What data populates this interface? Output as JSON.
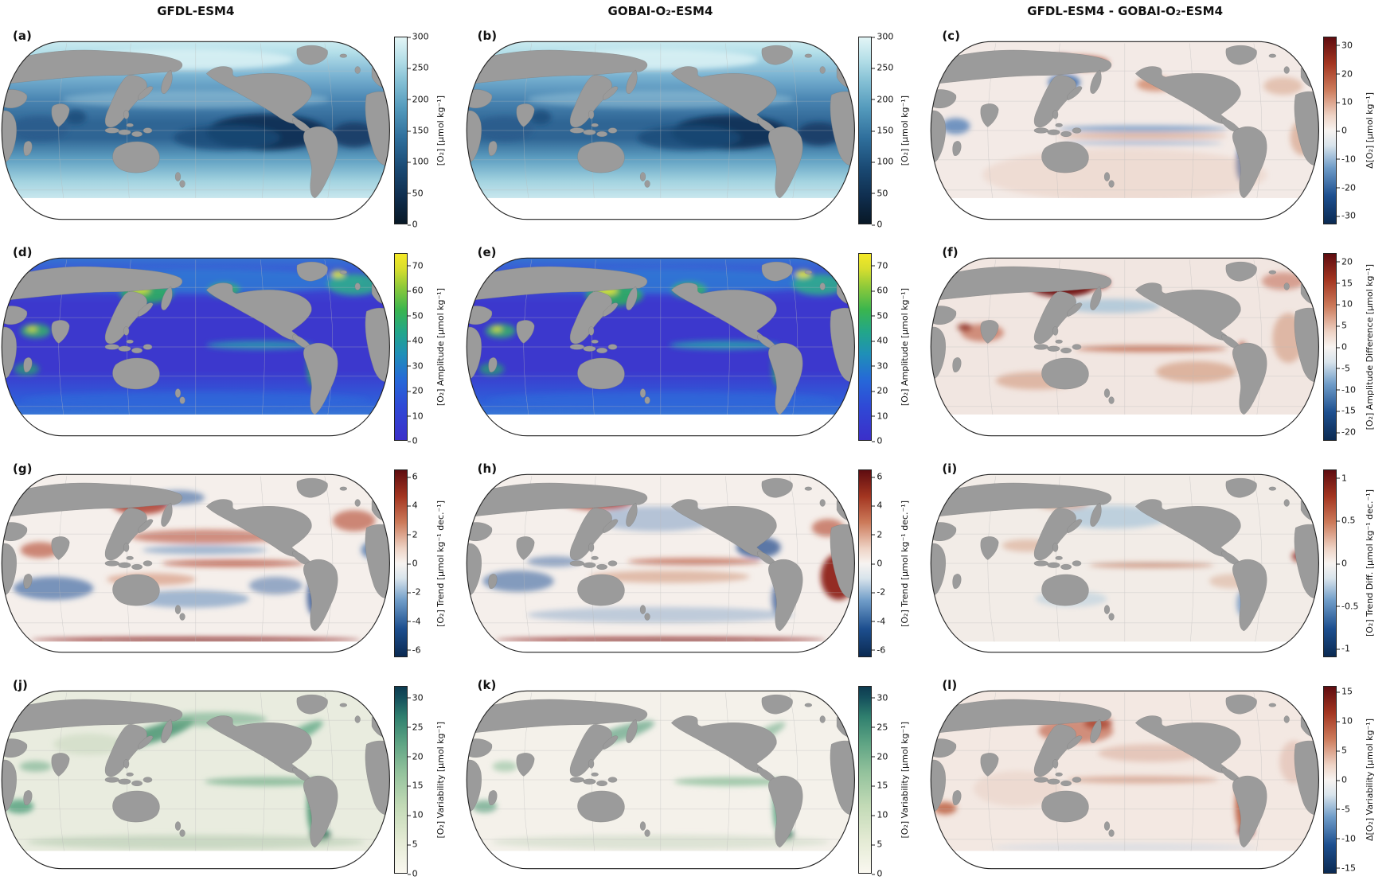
{
  "columns": [
    {
      "title": "GFDL-ESM4"
    },
    {
      "title": "GOBAI-O₂-ESM4"
    },
    {
      "title": "GFDL-ESM4 - GOBAI-O₂-ESM4"
    }
  ],
  "panels": {
    "a": {
      "label": "(a)"
    },
    "b": {
      "label": "(b)"
    },
    "c": {
      "label": "(c)"
    },
    "d": {
      "label": "(d)"
    },
    "e": {
      "label": "(e)"
    },
    "f": {
      "label": "(f)"
    },
    "g": {
      "label": "(g)"
    },
    "h": {
      "label": "(h)"
    },
    "i": {
      "label": "(i)"
    },
    "j": {
      "label": "(j)"
    },
    "k": {
      "label": "(k)"
    },
    "l": {
      "label": "(l)"
    }
  },
  "colorbars": {
    "o2": {
      "label": "[O₂] [μmol kg⁻¹]",
      "min": 0,
      "max": 300,
      "ticks": [
        0,
        50,
        100,
        150,
        200,
        250,
        300
      ],
      "colormap": [
        "#081826",
        "#1a4a74",
        "#2f6f9c",
        "#83bfd4",
        "#e2f5f6"
      ]
    },
    "o2_diff": {
      "label": "Δ[O₂] [μmol kg⁻¹]",
      "min": -33,
      "max": 33,
      "ticks": [
        -30,
        -20,
        -10,
        0,
        10,
        20,
        30
      ],
      "colormap": [
        "#0b2a52",
        "#6f9cc8",
        "#f7f3f0",
        "#cc7a5a",
        "#5e0c10"
      ]
    },
    "amp": {
      "label": "[O₂] Amplitude [μmol kg⁻¹]",
      "min": 0,
      "max": 75,
      "ticks": [
        0,
        10,
        20,
        30,
        40,
        50,
        60,
        70
      ],
      "colormap": [
        "#3b2fc9",
        "#2667d8",
        "#22a68a",
        "#8cc93a",
        "#f5e926"
      ]
    },
    "amp_diff": {
      "label": "[O₂] Amplitude Difference [μmol kg⁻¹]",
      "min": -22,
      "max": 22,
      "ticks": [
        -20,
        -15,
        -10,
        -5,
        0,
        5,
        10,
        15,
        20
      ],
      "colormap": [
        "#0b2a52",
        "#6f9cc8",
        "#f7f3f0",
        "#cc7a5a",
        "#5e0c10"
      ]
    },
    "trend": {
      "label": "[O₂] Trend [μmol kg⁻¹ dec.⁻¹]",
      "min": -6.5,
      "max": 6.5,
      "ticks": [
        -6,
        -4,
        -2,
        0,
        2,
        4,
        6
      ],
      "colormap": [
        "#0b2a52",
        "#6f9cc8",
        "#f7f3f0",
        "#cc7a5a",
        "#5e0c10"
      ]
    },
    "trend_diff": {
      "label": "[O₂] Trend Diff. [μmol kg⁻¹ dec.⁻¹]",
      "min": -1.1,
      "max": 1.1,
      "ticks": [
        -1,
        -0.5,
        0,
        0.5,
        1
      ],
      "colormap": [
        "#0b2a52",
        "#6f9cc8",
        "#f7f3f0",
        "#cc7a5a",
        "#5e0c10"
      ]
    },
    "var": {
      "label": "[O₂] Variability [μmol kg⁻¹]",
      "min": 0,
      "max": 32,
      "ticks": [
        0,
        5,
        10,
        15,
        20,
        25,
        30
      ],
      "colormap": [
        "#faf8f0",
        "#c2dab6",
        "#5da383",
        "#15505c",
        "#0d3a50"
      ]
    },
    "var_diff": {
      "label": "Δ[O₂] Variability [μmol kg⁻¹]",
      "min": -16,
      "max": 16,
      "ticks": [
        -15,
        -10,
        -5,
        0,
        5,
        10,
        15
      ],
      "colormap": [
        "#0b2a52",
        "#6f9cc8",
        "#f7f3f0",
        "#cc7a5a",
        "#5e0c10"
      ]
    }
  },
  "map_colors": {
    "land": "#9b9b9b",
    "outline": "#222222",
    "no_data": "#ffffff"
  }
}
